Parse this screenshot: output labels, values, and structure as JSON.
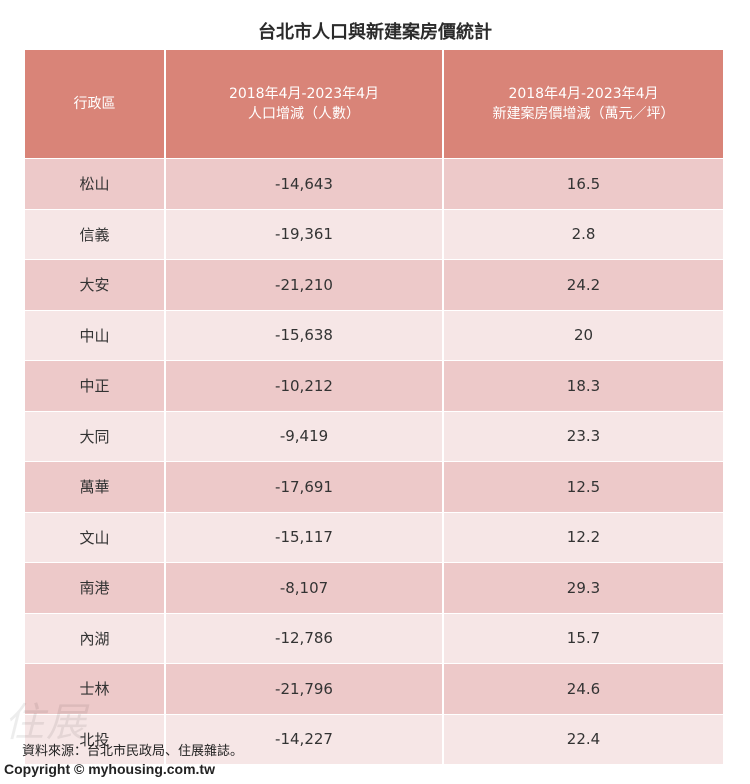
{
  "chart_data": {
    "type": "table",
    "title": "台北市人口與新建案房價統計",
    "headers": [
      {
        "line1": "行政區",
        "line2": ""
      },
      {
        "line1": "2018年4月-2023年4月",
        "line2": "人口增減（人數）"
      },
      {
        "line1": "2018年4月-2023年4月",
        "line2": "新建案房價增減（萬元／坪）"
      }
    ],
    "rows": [
      {
        "district": "松山",
        "population": "-14,643",
        "price": "16.5"
      },
      {
        "district": "信義",
        "population": "-19,361",
        "price": "2.8"
      },
      {
        "district": "大安",
        "population": "-21,210",
        "price": "24.2"
      },
      {
        "district": "中山",
        "population": "-15,638",
        "price": "20"
      },
      {
        "district": "中正",
        "population": "-10,212",
        "price": "18.3"
      },
      {
        "district": "大同",
        "population": "-9,419",
        "price": "23.3"
      },
      {
        "district": "萬華",
        "population": "-17,691",
        "price": "12.5"
      },
      {
        "district": "文山",
        "population": "-15,117",
        "price": "12.2"
      },
      {
        "district": "南港",
        "population": "-8,107",
        "price": "29.3"
      },
      {
        "district": "內湖",
        "population": "-12,786",
        "price": "15.7"
      },
      {
        "district": "士林",
        "population": "-21,796",
        "price": "24.6"
      },
      {
        "district": "北投",
        "population": "-14,227",
        "price": "22.4"
      }
    ],
    "colors": {
      "header": "#d98478",
      "row_odd": "#edc9c9",
      "row_even": "#f6e6e6"
    }
  },
  "footer": {
    "source": "資料來源：台北市民政局、住展雜誌。",
    "copyright": "Copyright © myhousing.com.tw",
    "watermark": "住展"
  }
}
